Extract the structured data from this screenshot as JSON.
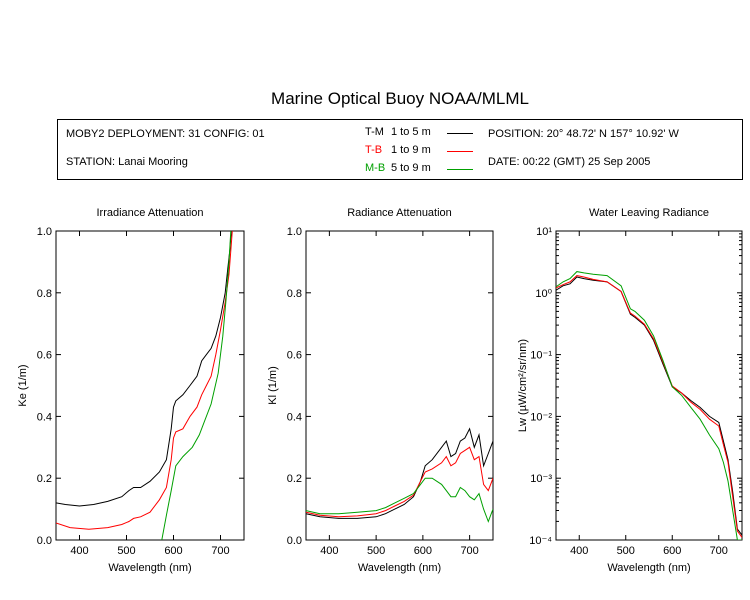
{
  "title": "Marine Optical Buoy NOAA/MLML",
  "info": {
    "deployment": "MOBY2 DEPLOYMENT: 31 CONFIG: 01",
    "station": "STATION: Lanai Mooring",
    "position": "POSITION: 20° 48.72' N   157° 10.92' W",
    "date": "DATE: 00:22 (GMT) 25 Sep 2005",
    "legend": [
      {
        "code": "T-M",
        "range": "1 to 5  m",
        "color": "#000000"
      },
      {
        "code": "T-B",
        "range": "1 to 9  m",
        "color": "#ff0000"
      },
      {
        "code": "M-B",
        "range": "5 to 9  m",
        "color": "#00a000"
      }
    ]
  },
  "chart_data": [
    {
      "type": "line",
      "title": "Irradiance Attenuation",
      "xlabel": "Wavelength (nm)",
      "ylabel": "Ke  (1/m)",
      "xlim": [
        350,
        750
      ],
      "ylim": [
        0,
        1
      ],
      "xticks": [
        400,
        500,
        600,
        700
      ],
      "yticks": [
        0.0,
        0.2,
        0.4,
        0.6,
        0.8,
        1.0
      ],
      "ytick_labels": [
        "0.0",
        "0.2",
        "0.4",
        "0.6",
        "0.8",
        "1.0"
      ],
      "series": [
        {
          "name": "T-M",
          "color": "#000000",
          "x": [
            350,
            370,
            400,
            430,
            460,
            490,
            505,
            515,
            530,
            550,
            570,
            585,
            595,
            600,
            605,
            620,
            635,
            650,
            660,
            670,
            680,
            690,
            700,
            710,
            715,
            720,
            723
          ],
          "y": [
            0.12,
            0.115,
            0.11,
            0.115,
            0.125,
            0.14,
            0.16,
            0.17,
            0.17,
            0.19,
            0.22,
            0.26,
            0.36,
            0.43,
            0.45,
            0.47,
            0.5,
            0.53,
            0.58,
            0.6,
            0.62,
            0.66,
            0.72,
            0.8,
            0.87,
            0.94,
            1.0
          ]
        },
        {
          "name": "T-B",
          "color": "#ff0000",
          "x": [
            350,
            380,
            420,
            460,
            490,
            505,
            515,
            530,
            550,
            570,
            585,
            595,
            600,
            605,
            620,
            635,
            650,
            660,
            670,
            680,
            690,
            700,
            710,
            718,
            725
          ],
          "y": [
            0.055,
            0.04,
            0.035,
            0.04,
            0.05,
            0.06,
            0.07,
            0.075,
            0.09,
            0.13,
            0.17,
            0.26,
            0.33,
            0.35,
            0.36,
            0.4,
            0.43,
            0.47,
            0.5,
            0.53,
            0.6,
            0.68,
            0.77,
            0.86,
            1.0
          ]
        },
        {
          "name": "M-B",
          "color": "#00a000",
          "x": [
            575,
            585,
            595,
            605,
            620,
            640,
            655,
            665,
            680,
            695,
            705,
            712,
            718,
            722
          ],
          "y": [
            0.0,
            0.08,
            0.16,
            0.24,
            0.27,
            0.3,
            0.34,
            0.38,
            0.44,
            0.54,
            0.66,
            0.78,
            0.9,
            1.0
          ]
        }
      ]
    },
    {
      "type": "line",
      "title": "Radiance Attenuation",
      "xlabel": "Wavelength (nm)",
      "ylabel": "Kl  (1/m)",
      "xlim": [
        350,
        750
      ],
      "ylim": [
        0,
        1
      ],
      "xticks": [
        400,
        500,
        600,
        700
      ],
      "yticks": [
        0.0,
        0.2,
        0.4,
        0.6,
        0.8,
        1.0
      ],
      "ytick_labels": [
        "0.0",
        "0.2",
        "0.4",
        "0.6",
        "0.8",
        "1.0"
      ],
      "series": [
        {
          "name": "T-M",
          "color": "#000000",
          "x": [
            350,
            380,
            420,
            460,
            500,
            520,
            540,
            560,
            580,
            595,
            605,
            620,
            640,
            650,
            660,
            670,
            680,
            690,
            700,
            710,
            720,
            730,
            740,
            750
          ],
          "y": [
            0.085,
            0.075,
            0.07,
            0.07,
            0.075,
            0.085,
            0.1,
            0.115,
            0.14,
            0.19,
            0.24,
            0.26,
            0.3,
            0.32,
            0.27,
            0.28,
            0.32,
            0.33,
            0.36,
            0.3,
            0.34,
            0.24,
            0.28,
            0.32
          ]
        },
        {
          "name": "T-B",
          "color": "#ff0000",
          "x": [
            350,
            380,
            420,
            460,
            500,
            520,
            540,
            560,
            580,
            595,
            605,
            620,
            640,
            650,
            660,
            670,
            680,
            690,
            700,
            710,
            720,
            730,
            740,
            750
          ],
          "y": [
            0.09,
            0.08,
            0.075,
            0.078,
            0.085,
            0.095,
            0.11,
            0.125,
            0.145,
            0.19,
            0.22,
            0.23,
            0.25,
            0.27,
            0.24,
            0.25,
            0.28,
            0.29,
            0.3,
            0.26,
            0.27,
            0.18,
            0.16,
            0.2
          ]
        },
        {
          "name": "M-B",
          "color": "#00a000",
          "x": [
            350,
            380,
            420,
            460,
            500,
            520,
            540,
            560,
            580,
            595,
            605,
            620,
            640,
            650,
            660,
            670,
            680,
            690,
            700,
            710,
            720,
            730,
            740,
            750
          ],
          "y": [
            0.095,
            0.085,
            0.085,
            0.09,
            0.095,
            0.105,
            0.12,
            0.135,
            0.15,
            0.18,
            0.2,
            0.2,
            0.18,
            0.16,
            0.14,
            0.14,
            0.17,
            0.16,
            0.14,
            0.13,
            0.15,
            0.1,
            0.06,
            0.1
          ]
        }
      ]
    },
    {
      "type": "line",
      "title": "Water Leaving Radiance",
      "xlabel": "Wavelength (nm)",
      "ylabel": "Lw  (µW/cm²/sr/nm)",
      "xlim": [
        350,
        750
      ],
      "ylim": [
        0.0001,
        10
      ],
      "yscale": "log",
      "xticks": [
        400,
        500,
        600,
        700
      ],
      "yticks": [
        10,
        1,
        0.1,
        0.01,
        0.001,
        0.0001
      ],
      "ytick_labels": [
        "10¹",
        "10⁰",
        "10⁻¹",
        "10⁻²",
        "10⁻³",
        "10⁻⁴"
      ],
      "series": [
        {
          "name": "T-M",
          "color": "#000000",
          "x": [
            350,
            365,
            380,
            395,
            410,
            430,
            460,
            490,
            510,
            520,
            540,
            560,
            580,
            600,
            620,
            640,
            660,
            680,
            700,
            710,
            720,
            730,
            740,
            750
          ],
          "y": [
            1.1,
            1.3,
            1.4,
            1.8,
            1.7,
            1.6,
            1.5,
            1.05,
            0.45,
            0.4,
            0.3,
            0.17,
            0.07,
            0.03,
            0.024,
            0.018,
            0.014,
            0.01,
            0.008,
            0.004,
            0.002,
            0.0006,
            0.00015,
            0.00012
          ]
        },
        {
          "name": "T-B",
          "color": "#ff0000",
          "x": [
            350,
            365,
            380,
            395,
            410,
            430,
            460,
            490,
            510,
            520,
            540,
            560,
            580,
            600,
            620,
            640,
            660,
            680,
            700,
            710,
            720,
            730,
            740,
            750
          ],
          "y": [
            1.2,
            1.35,
            1.5,
            1.9,
            1.8,
            1.65,
            1.5,
            1.05,
            0.47,
            0.42,
            0.31,
            0.18,
            0.075,
            0.031,
            0.024,
            0.017,
            0.013,
            0.009,
            0.007,
            0.0035,
            0.0018,
            0.0005,
            0.00014,
            0.00011
          ]
        },
        {
          "name": "M-B",
          "color": "#00a000",
          "x": [
            350,
            365,
            380,
            395,
            410,
            430,
            460,
            490,
            510,
            520,
            540,
            560,
            580,
            600,
            620,
            640,
            660,
            680,
            700,
            710,
            720,
            730,
            740,
            750
          ],
          "y": [
            1.25,
            1.5,
            1.7,
            2.2,
            2.1,
            2.0,
            1.9,
            1.3,
            0.55,
            0.5,
            0.36,
            0.2,
            0.08,
            0.03,
            0.022,
            0.014,
            0.009,
            0.005,
            0.003,
            0.0018,
            0.0009,
            0.0003,
            0.0001,
            0.0001
          ]
        }
      ]
    }
  ]
}
